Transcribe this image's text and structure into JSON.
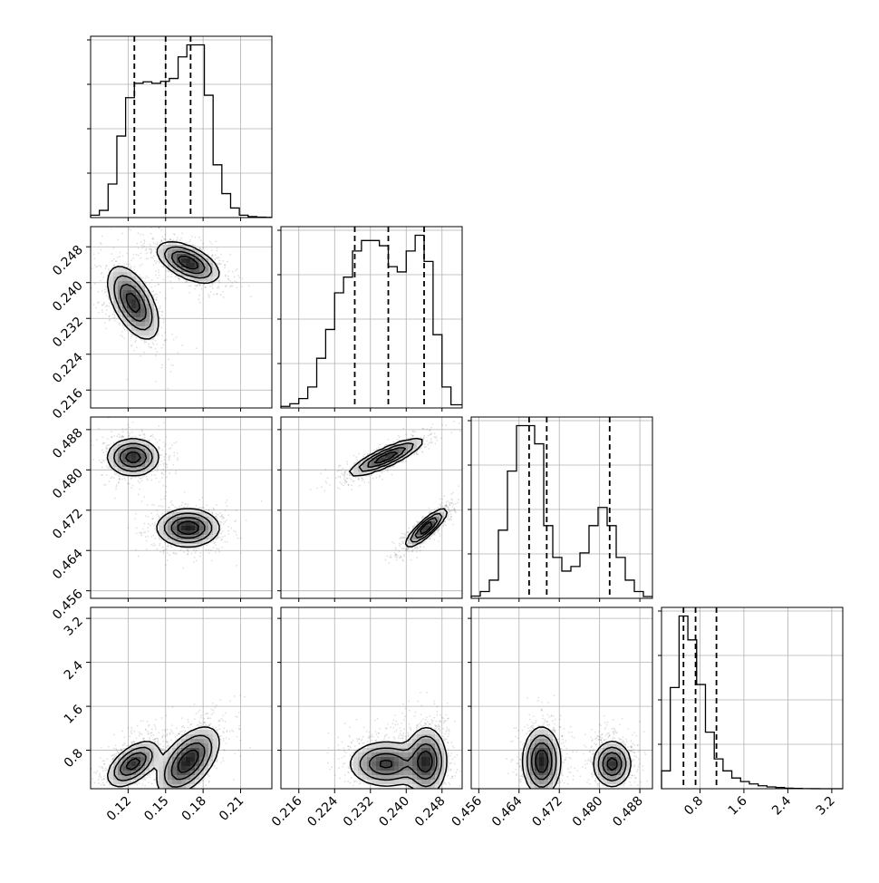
{
  "chart_data": {
    "type": "corner",
    "variables": [
      {
        "range": [
          0.09,
          0.235
        ],
        "ticks": [
          0.12,
          0.15,
          0.18,
          0.21
        ],
        "tick_labels": [
          "0.12",
          "0.15",
          "0.18",
          "0.21"
        ],
        "quantiles": [
          0.125,
          0.15,
          0.17
        ],
        "hist": {
          "edges": [
            0.09,
            0.097,
            0.104,
            0.111,
            0.118,
            0.125,
            0.132,
            0.139,
            0.146,
            0.153,
            0.16,
            0.167,
            0.174,
            0.181,
            0.188,
            0.195,
            0.202,
            0.209,
            0.216,
            0.223,
            0.23,
            0.235
          ],
          "counts": [
            0.5,
            1.5,
            7,
            17,
            25,
            28,
            28.3,
            28,
            28.4,
            29,
            33.5,
            36,
            36,
            25.5,
            11,
            5,
            2,
            0.5,
            0.2,
            0.1,
            0.05
          ]
        }
      },
      {
        "range": [
          0.212,
          0.2525
        ],
        "ticks": [
          0.216,
          0.224,
          0.232,
          0.24,
          0.248
        ],
        "tick_labels": [
          "0.216",
          "0.224",
          "0.232",
          "0.240",
          "0.248"
        ],
        "quantiles": [
          0.2285,
          0.236,
          0.244
        ],
        "hist": {
          "edges": [
            0.212,
            0.214,
            0.216,
            0.218,
            0.22,
            0.222,
            0.224,
            0.226,
            0.228,
            0.23,
            0.232,
            0.234,
            0.236,
            0.238,
            0.24,
            0.242,
            0.244,
            0.246,
            0.248,
            0.25,
            0.2525
          ],
          "counts": [
            0.3,
            0.8,
            1.8,
            4,
            9.5,
            15,
            22,
            25,
            30,
            32,
            32,
            31,
            27,
            26,
            30,
            33,
            28,
            14,
            4,
            0.6
          ]
        }
      },
      {
        "range": [
          0.4545,
          0.4905
        ],
        "ticks": [
          0.456,
          0.464,
          0.472,
          0.48,
          0.488
        ],
        "tick_labels": [
          "0.456",
          "0.464",
          "0.472",
          "0.480",
          "0.488"
        ],
        "quantiles": [
          0.466,
          0.4695,
          0.482
        ],
        "hist": {
          "edges": [
            0.4545,
            0.4563,
            0.4581,
            0.4599,
            0.4617,
            0.4635,
            0.4653,
            0.4671,
            0.4689,
            0.4707,
            0.4725,
            0.4743,
            0.4761,
            0.4779,
            0.4797,
            0.4815,
            0.4833,
            0.4851,
            0.4869,
            0.4887,
            0.4905
          ],
          "counts": [
            0.5,
            1.5,
            4,
            15,
            28,
            38,
            38,
            34,
            16,
            9,
            6,
            7,
            10,
            16,
            20,
            16,
            9,
            4,
            1.5,
            0.4
          ]
        }
      },
      {
        "range": [
          0.1,
          3.4
        ],
        "ticks": [
          0.8,
          1.6,
          2.4,
          3.2
        ],
        "tick_labels": [
          "0.8",
          "1.6",
          "2.4",
          "3.2"
        ],
        "quantiles": [
          0.5,
          0.72,
          1.1
        ],
        "hist": {
          "edges": [
            0.1,
            0.26,
            0.42,
            0.58,
            0.74,
            0.9,
            1.06,
            1.22,
            1.38,
            1.54,
            1.7,
            1.86,
            2.02,
            2.18,
            2.34,
            2.5,
            2.66,
            2.82,
            2.98,
            3.14,
            3.4
          ],
          "counts": [
            3,
            17,
            29,
            25,
            17.5,
            9.5,
            5,
            3,
            1.8,
            1.2,
            0.8,
            0.5,
            0.3,
            0.2,
            0.1,
            0.05,
            0.02,
            0.01,
            0.005,
            0.0
          ]
        }
      }
    ],
    "modes": [
      {
        "v": [
          0.124,
          0.2355,
          0.4825,
          0.55
        ],
        "s": [
          0.01,
          0.004,
          0.0018,
          0.2
        ],
        "w": 0.48
      },
      {
        "v": [
          0.168,
          0.2445,
          0.4685,
          0.6
        ],
        "s": [
          0.012,
          0.0022,
          0.0018,
          0.3
        ],
        "w": 0.52
      }
    ],
    "grid": true,
    "quantile_line_style": "dashed",
    "contour_levels": 4
  }
}
